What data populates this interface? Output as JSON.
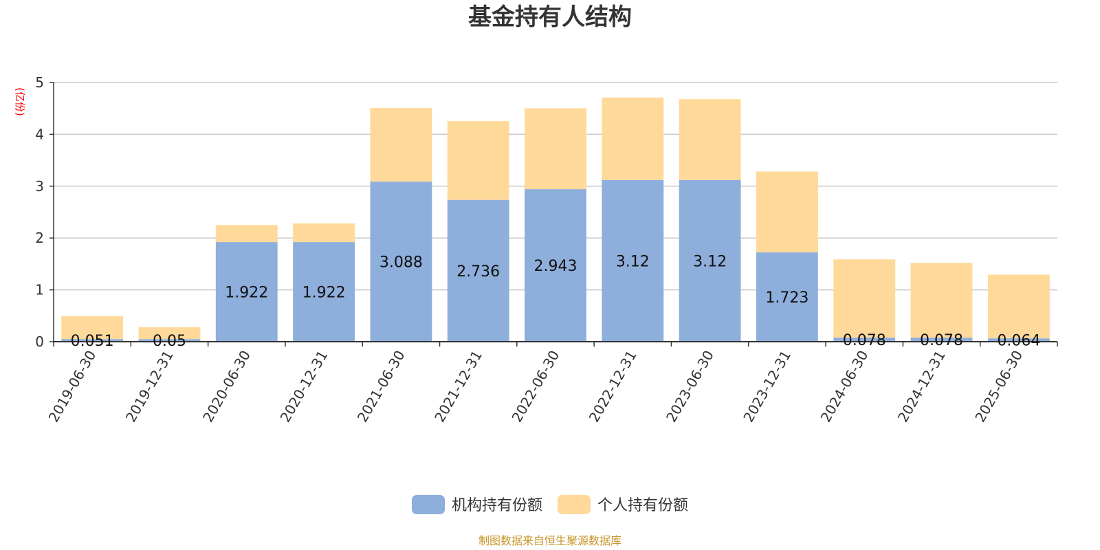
{
  "chart_data": {
    "type": "bar",
    "stacked": true,
    "title": "基金持有人结构",
    "unit_label": "(亿份)",
    "categories": [
      "2019-06-30",
      "2019-12-31",
      "2020-06-30",
      "2020-12-31",
      "2021-06-30",
      "2021-12-31",
      "2022-06-30",
      "2022-12-31",
      "2023-06-30",
      "2023-12-31",
      "2024-06-30",
      "2024-12-31",
      "2025-06-30"
    ],
    "series": [
      {
        "name": "机构持有份额",
        "color": "#8eaedb",
        "values": [
          0.051,
          0.05,
          1.922,
          1.922,
          3.088,
          2.736,
          2.943,
          3.12,
          3.12,
          1.723,
          0.078,
          0.078,
          0.064
        ],
        "labels": [
          "0.051",
          "0.05",
          "1.922",
          "1.922",
          "3.088",
          "2.736",
          "2.943",
          "3.12",
          "3.12",
          "1.723",
          "0.078",
          "0.078",
          "0.064"
        ]
      },
      {
        "name": "个人持有份额",
        "color": "#ffd999",
        "values": [
          0.44,
          0.23,
          0.33,
          0.36,
          1.42,
          1.52,
          1.56,
          1.59,
          1.56,
          1.56,
          1.51,
          1.44,
          1.23
        ]
      }
    ],
    "ylim": [
      0,
      5
    ],
    "yticks": [
      "0",
      "1",
      "2",
      "3",
      "4",
      "5"
    ],
    "grid": true,
    "legend_position": "bottom-center",
    "source_note": "制图数据来自恒生聚源数据库"
  }
}
